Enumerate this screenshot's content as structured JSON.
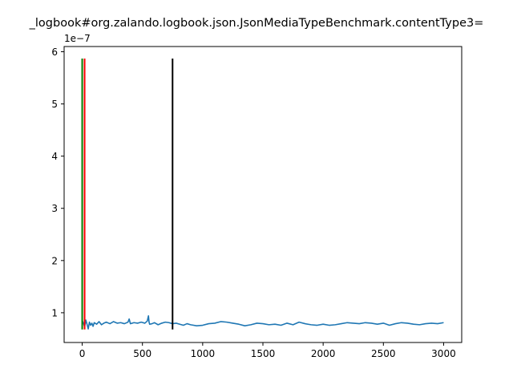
{
  "chart_data": {
    "type": "line",
    "title": "_logbook#org.zalando.logbook.json.JsonMediaTypeBenchmark.contentType3=",
    "xlabel": "",
    "ylabel": "",
    "y_offset_label": "1e−7",
    "y_scale": 1e-07,
    "xlim": [
      -150,
      3150
    ],
    "ylim": [
      0.43,
      6.1
    ],
    "x_ticks": [
      0,
      500,
      1000,
      1500,
      2000,
      2500,
      3000
    ],
    "x_tick_labels": [
      "0",
      "500",
      "1000",
      "1500",
      "2000",
      "2500",
      "3000"
    ],
    "y_ticks": [
      1,
      2,
      3,
      4,
      5,
      6
    ],
    "y_tick_labels": [
      "1",
      "2",
      "3",
      "4",
      "5",
      "6"
    ],
    "grid": false,
    "series": [
      {
        "color": "#1f77b4",
        "x": [
          0,
          10,
          20,
          30,
          40,
          50,
          60,
          70,
          80,
          90,
          100,
          120,
          140,
          160,
          180,
          200,
          230,
          260,
          290,
          320,
          350,
          380,
          390,
          400,
          430,
          460,
          490,
          520,
          540,
          550,
          555,
          560,
          580,
          600,
          630,
          660,
          690,
          720,
          750,
          780,
          810,
          840,
          870,
          900,
          950,
          1000,
          1050,
          1100,
          1150,
          1200,
          1250,
          1300,
          1350,
          1400,
          1450,
          1500,
          1550,
          1600,
          1650,
          1700,
          1750,
          1800,
          1850,
          1900,
          1950,
          2000,
          2050,
          2100,
          2150,
          2200,
          2250,
          2300,
          2350,
          2400,
          2450,
          2500,
          2550,
          2600,
          2650,
          2700,
          2750,
          2800,
          2850,
          2900,
          2950,
          3000
        ],
        "values": [
          0.85,
          0.8,
          0.73,
          0.86,
          0.78,
          0.69,
          0.82,
          0.76,
          0.8,
          0.74,
          0.81,
          0.78,
          0.83,
          0.77,
          0.8,
          0.82,
          0.79,
          0.83,
          0.8,
          0.81,
          0.79,
          0.82,
          0.88,
          0.79,
          0.81,
          0.8,
          0.82,
          0.8,
          0.84,
          0.94,
          0.82,
          0.78,
          0.79,
          0.81,
          0.77,
          0.8,
          0.82,
          0.81,
          0.79,
          0.8,
          0.78,
          0.76,
          0.79,
          0.77,
          0.75,
          0.76,
          0.79,
          0.8,
          0.83,
          0.82,
          0.8,
          0.78,
          0.75,
          0.77,
          0.8,
          0.79,
          0.77,
          0.78,
          0.76,
          0.8,
          0.77,
          0.82,
          0.79,
          0.77,
          0.76,
          0.78,
          0.76,
          0.77,
          0.79,
          0.81,
          0.8,
          0.79,
          0.81,
          0.8,
          0.78,
          0.8,
          0.76,
          0.79,
          0.81,
          0.8,
          0.78,
          0.77,
          0.79,
          0.8,
          0.79,
          0.81
        ]
      }
    ],
    "vlines": [
      {
        "x": 0,
        "ymin": 0.68,
        "ymax": 5.87,
        "color": "#008000"
      },
      {
        "x": 20,
        "ymin": 0.68,
        "ymax": 5.87,
        "color": "#ff0000"
      },
      {
        "x": 750,
        "ymin": 0.68,
        "ymax": 5.87,
        "color": "#000000"
      }
    ]
  }
}
